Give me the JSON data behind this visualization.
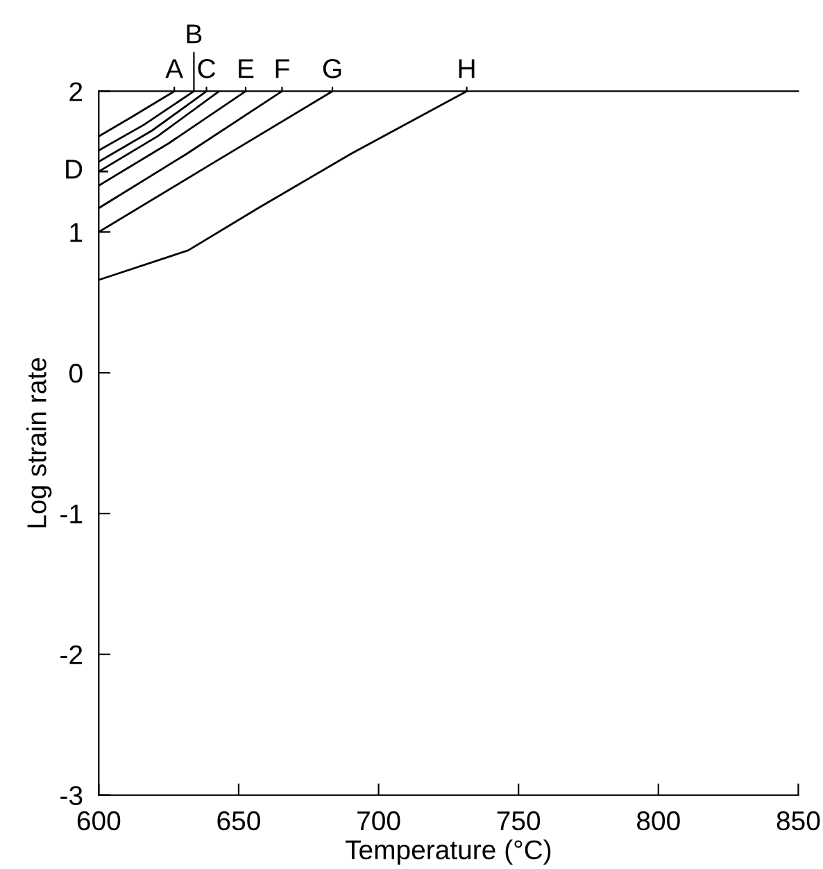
{
  "chart_data": {
    "type": "line",
    "xlabel": "Temperature (°C)",
    "ylabel": "Log strain rate",
    "xlim": [
      600,
      850
    ],
    "ylim": [
      -3,
      2
    ],
    "xticks": [
      600,
      650,
      700,
      750,
      800,
      850
    ],
    "yticks": [
      {
        "value": -3,
        "label": "-3"
      },
      {
        "value": -2,
        "label": "-2"
      },
      {
        "value": -1,
        "label": "-1"
      },
      0,
      1,
      2
    ],
    "grid": false,
    "marker": "none",
    "line_style": "solid",
    "series": [
      {
        "color": "#000000",
        "x": [
          600,
          612,
          627
        ],
        "values": [
          1.68,
          1.82,
          2
        ]
      },
      {
        "color": "#000000",
        "x": [
          600,
          616,
          634
        ],
        "values": [
          1.58,
          1.76,
          2
        ]
      },
      {
        "color": "#000000",
        "x": [
          600,
          619,
          638.5
        ],
        "values": [
          1.5,
          1.72,
          2
        ]
      },
      {
        "color": "#000000",
        "x": [
          600,
          621,
          643
        ],
        "values": [
          1.43,
          1.68,
          2
        ]
      },
      {
        "color": "#000000",
        "x": [
          600,
          625,
          652.5
        ],
        "values": [
          1.33,
          1.63,
          2
        ]
      },
      {
        "color": "#000000",
        "x": [
          600,
          631,
          665.5
        ],
        "values": [
          1.17,
          1.55,
          2
        ]
      },
      {
        "color": "#000000",
        "x": [
          600,
          640,
          683.5
        ],
        "values": [
          1.0,
          1.48,
          2
        ]
      },
      {
        "color": "#000000",
        "x": [
          600,
          632,
          657,
          690.5,
          731.5
        ],
        "values": [
          0.66,
          0.87,
          1.17,
          1.56,
          2
        ]
      }
    ],
    "annotations": [
      {
        "text": "A",
        "x": 627,
        "y": 2
      },
      {
        "text": "B",
        "x": 634,
        "y": 2
      },
      {
        "text": "C",
        "x": 638.5,
        "y": 2
      },
      {
        "text": "D",
        "x": 600,
        "y": 1.43
      },
      {
        "text": "E",
        "x": 652.5,
        "y": 2
      },
      {
        "text": "F",
        "x": 665.5,
        "y": 2
      },
      {
        "text": "G",
        "x": 683.5,
        "y": 2
      },
      {
        "text": "H",
        "x": 731.5,
        "y": 2
      }
    ]
  }
}
